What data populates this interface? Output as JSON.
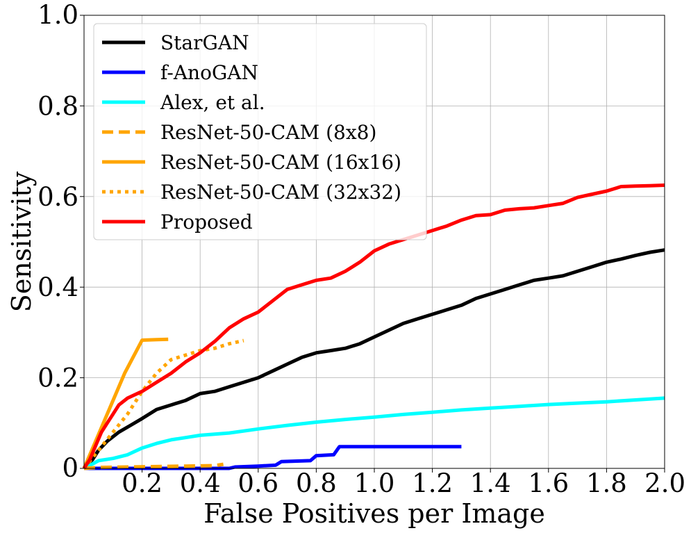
{
  "chart_data": {
    "type": "line",
    "xlabel": "False Positives per Image",
    "ylabel": "Sensitivity",
    "xlim": [
      0,
      2.0
    ],
    "ylim": [
      0,
      1.0
    ],
    "x_ticks": [
      0.2,
      0.4,
      0.6,
      0.8,
      1.0,
      1.2,
      1.4,
      1.6,
      1.8,
      2.0
    ],
    "x_tick_labels": [
      "0.2",
      "0.4",
      "0.6",
      "0.8",
      "1.0",
      "1.2",
      "1.4",
      "1.6",
      "1.8",
      "2.0"
    ],
    "y_ticks": [
      0,
      0.2,
      0.4,
      0.6,
      0.8,
      1.0
    ],
    "y_tick_labels": [
      "0",
      "0.2",
      "0.4",
      "0.6",
      "0.8",
      "1.0"
    ],
    "grid": true,
    "legend_position": "top-left",
    "series": [
      {
        "name": "StarGAN",
        "color": "#000000",
        "dash": "solid",
        "points": [
          [
            0,
            0
          ],
          [
            0.03,
            0.02
          ],
          [
            0.05,
            0.04
          ],
          [
            0.08,
            0.06
          ],
          [
            0.12,
            0.08
          ],
          [
            0.16,
            0.095
          ],
          [
            0.2,
            0.11
          ],
          [
            0.25,
            0.13
          ],
          [
            0.3,
            0.14
          ],
          [
            0.35,
            0.15
          ],
          [
            0.4,
            0.165
          ],
          [
            0.45,
            0.17
          ],
          [
            0.5,
            0.18
          ],
          [
            0.55,
            0.19
          ],
          [
            0.6,
            0.2
          ],
          [
            0.65,
            0.215
          ],
          [
            0.7,
            0.23
          ],
          [
            0.75,
            0.245
          ],
          [
            0.8,
            0.255
          ],
          [
            0.85,
            0.26
          ],
          [
            0.9,
            0.265
          ],
          [
            0.95,
            0.275
          ],
          [
            1.0,
            0.29
          ],
          [
            1.05,
            0.305
          ],
          [
            1.1,
            0.32
          ],
          [
            1.15,
            0.33
          ],
          [
            1.2,
            0.34
          ],
          [
            1.25,
            0.35
          ],
          [
            1.3,
            0.36
          ],
          [
            1.35,
            0.375
          ],
          [
            1.4,
            0.385
          ],
          [
            1.45,
            0.395
          ],
          [
            1.5,
            0.405
          ],
          [
            1.55,
            0.415
          ],
          [
            1.6,
            0.42
          ],
          [
            1.65,
            0.425
          ],
          [
            1.7,
            0.435
          ],
          [
            1.75,
            0.445
          ],
          [
            1.8,
            0.455
          ],
          [
            1.85,
            0.462
          ],
          [
            1.9,
            0.47
          ],
          [
            1.95,
            0.477
          ],
          [
            2.0,
            0.482
          ]
        ]
      },
      {
        "name": "f-AnoGAN",
        "color": "#0000ff",
        "dash": "solid",
        "points": [
          [
            0,
            0
          ],
          [
            0.5,
            0
          ],
          [
            0.52,
            0.003
          ],
          [
            0.6,
            0.005
          ],
          [
            0.66,
            0.007
          ],
          [
            0.68,
            0.015
          ],
          [
            0.78,
            0.017
          ],
          [
            0.8,
            0.028
          ],
          [
            0.86,
            0.03
          ],
          [
            0.88,
            0.048
          ],
          [
            1.3,
            0.048
          ]
        ]
      },
      {
        "name": "Alex, et al.",
        "color": "#00ffff",
        "dash": "solid",
        "points": [
          [
            0,
            0
          ],
          [
            0.03,
            0.01
          ],
          [
            0.05,
            0.017
          ],
          [
            0.1,
            0.022
          ],
          [
            0.15,
            0.03
          ],
          [
            0.2,
            0.045
          ],
          [
            0.25,
            0.055
          ],
          [
            0.3,
            0.063
          ],
          [
            0.35,
            0.068
          ],
          [
            0.4,
            0.073
          ],
          [
            0.5,
            0.078
          ],
          [
            0.6,
            0.087
          ],
          [
            0.7,
            0.095
          ],
          [
            0.8,
            0.102
          ],
          [
            0.9,
            0.108
          ],
          [
            1.0,
            0.113
          ],
          [
            1.1,
            0.119
          ],
          [
            1.2,
            0.124
          ],
          [
            1.3,
            0.129
          ],
          [
            1.4,
            0.133
          ],
          [
            1.5,
            0.137
          ],
          [
            1.6,
            0.141
          ],
          [
            1.7,
            0.144
          ],
          [
            1.8,
            0.147
          ],
          [
            1.9,
            0.151
          ],
          [
            2.0,
            0.155
          ]
        ]
      },
      {
        "name": "ResNet-50-CAM (8x8)",
        "color": "#ffa500",
        "dash": "dashed",
        "points": [
          [
            0,
            0
          ],
          [
            0.05,
            0.002
          ],
          [
            0.15,
            0.003
          ],
          [
            0.25,
            0.004
          ],
          [
            0.35,
            0.005
          ],
          [
            0.45,
            0.006
          ],
          [
            0.48,
            0.009
          ]
        ]
      },
      {
        "name": "ResNet-50-CAM (16x16)",
        "color": "#ffa500",
        "dash": "solid",
        "points": [
          [
            0,
            0
          ],
          [
            0.14,
            0.21
          ],
          [
            0.2,
            0.283
          ],
          [
            0.25,
            0.284
          ],
          [
            0.29,
            0.285
          ]
        ]
      },
      {
        "name": "ResNet-50-CAM (32x32)",
        "color": "#ffa500",
        "dash": "dotted",
        "points": [
          [
            0,
            0
          ],
          [
            0.05,
            0.04
          ],
          [
            0.1,
            0.08
          ],
          [
            0.15,
            0.12
          ],
          [
            0.2,
            0.17
          ],
          [
            0.25,
            0.21
          ],
          [
            0.3,
            0.24
          ],
          [
            0.35,
            0.25
          ],
          [
            0.4,
            0.26
          ],
          [
            0.45,
            0.265
          ],
          [
            0.5,
            0.275
          ],
          [
            0.55,
            0.282
          ]
        ]
      },
      {
        "name": "Proposed",
        "color": "#ff0000",
        "dash": "solid",
        "points": [
          [
            0,
            0
          ],
          [
            0.02,
            0.02
          ],
          [
            0.04,
            0.05
          ],
          [
            0.06,
            0.08
          ],
          [
            0.08,
            0.1
          ],
          [
            0.1,
            0.12
          ],
          [
            0.12,
            0.14
          ],
          [
            0.15,
            0.155
          ],
          [
            0.2,
            0.17
          ],
          [
            0.25,
            0.19
          ],
          [
            0.3,
            0.21
          ],
          [
            0.35,
            0.235
          ],
          [
            0.4,
            0.255
          ],
          [
            0.45,
            0.28
          ],
          [
            0.5,
            0.31
          ],
          [
            0.55,
            0.33
          ],
          [
            0.6,
            0.345
          ],
          [
            0.65,
            0.37
          ],
          [
            0.7,
            0.395
          ],
          [
            0.75,
            0.405
          ],
          [
            0.8,
            0.415
          ],
          [
            0.85,
            0.42
          ],
          [
            0.9,
            0.435
          ],
          [
            0.95,
            0.455
          ],
          [
            1.0,
            0.48
          ],
          [
            1.05,
            0.495
          ],
          [
            1.1,
            0.505
          ],
          [
            1.15,
            0.515
          ],
          [
            1.2,
            0.525
          ],
          [
            1.25,
            0.535
          ],
          [
            1.3,
            0.548
          ],
          [
            1.35,
            0.558
          ],
          [
            1.4,
            0.56
          ],
          [
            1.45,
            0.57
          ],
          [
            1.5,
            0.573
          ],
          [
            1.55,
            0.575
          ],
          [
            1.6,
            0.58
          ],
          [
            1.65,
            0.585
          ],
          [
            1.7,
            0.598
          ],
          [
            1.75,
            0.605
          ],
          [
            1.8,
            0.612
          ],
          [
            1.85,
            0.622
          ],
          [
            1.9,
            0.623
          ],
          [
            1.95,
            0.624
          ],
          [
            2.0,
            0.625
          ]
        ]
      }
    ]
  }
}
